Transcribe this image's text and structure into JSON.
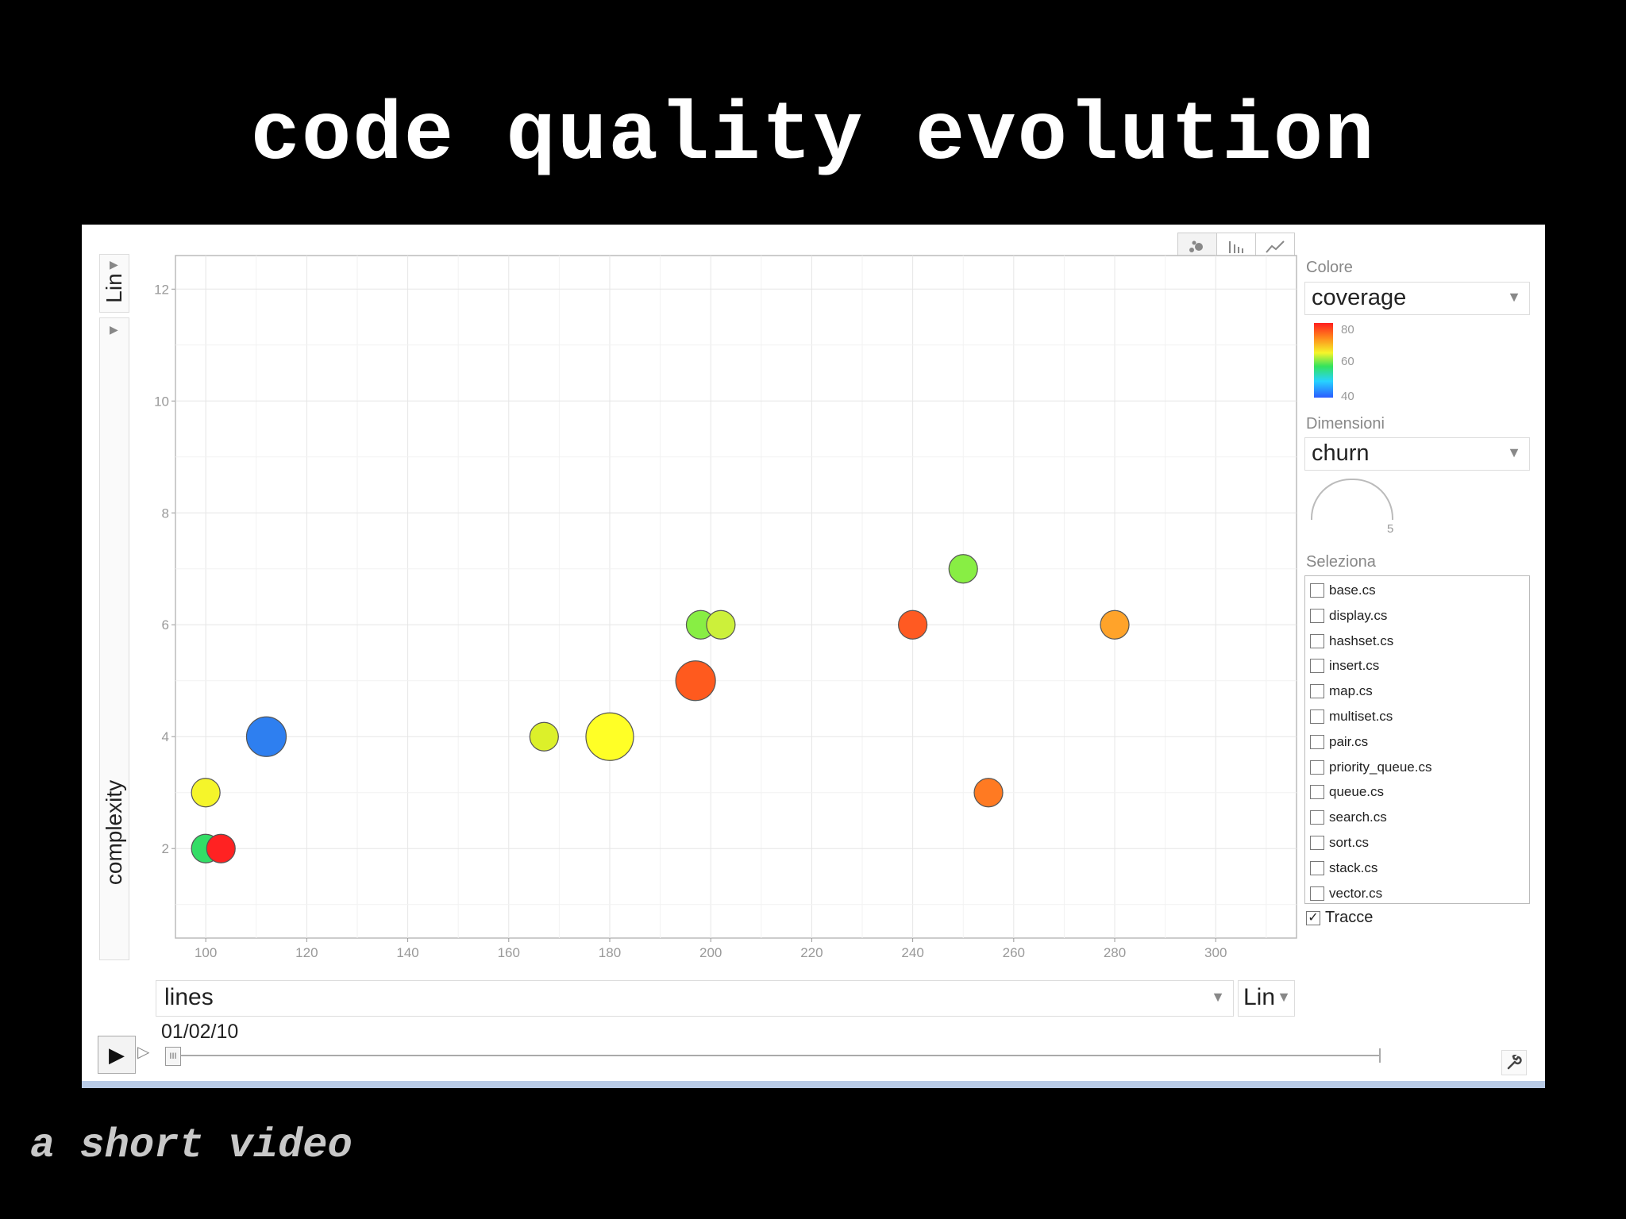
{
  "slide": {
    "title": "code quality evolution",
    "subtitle": "a short video"
  },
  "toolbar": {
    "chart_tabs": [
      "bubble",
      "bar",
      "line"
    ],
    "active_tab": "bubble"
  },
  "y_axis_control": {
    "scale": "Lin",
    "metric": "complexity"
  },
  "x_axis_control": {
    "metric": "lines",
    "scale": "Lin"
  },
  "timeline": {
    "date": "01/02/10"
  },
  "side_panel": {
    "color_label": "Colore",
    "color_metric": "coverage",
    "color_ticks": [
      "80",
      "60",
      "40"
    ],
    "size_label": "Dimensioni",
    "size_metric": "churn",
    "size_tick": "5",
    "select_label": "Seleziona",
    "files": [
      "base.cs",
      "display.cs",
      "hashset.cs",
      "insert.cs",
      "map.cs",
      "multiset.cs",
      "pair.cs",
      "priority_queue.cs",
      "queue.cs",
      "search.cs",
      "sort.cs",
      "stack.cs",
      "vector.cs"
    ],
    "trails_label": "Tracce",
    "trails_checked": true
  },
  "chart_data": {
    "type": "scatter",
    "title": "",
    "xlabel": "lines",
    "ylabel": "complexity",
    "xlim": [
      94,
      316
    ],
    "ylim": [
      0.4,
      12.6
    ],
    "x_ticks": [
      100,
      120,
      140,
      160,
      180,
      200,
      220,
      240,
      260,
      280,
      300
    ],
    "y_ticks": [
      2,
      4,
      6,
      8,
      10,
      12
    ],
    "grid": true,
    "color_metric": "coverage",
    "size_metric": "churn",
    "points": [
      {
        "x": 100,
        "y": 2,
        "r": 18,
        "color": "#33dd66"
      },
      {
        "x": 103,
        "y": 2,
        "r": 18,
        "color": "#ff2222"
      },
      {
        "x": 100,
        "y": 3,
        "r": 18,
        "color": "#f5f52a"
      },
      {
        "x": 112,
        "y": 4,
        "r": 25,
        "color": "#2e7ff0"
      },
      {
        "x": 167,
        "y": 4,
        "r": 18,
        "color": "#dcf02a"
      },
      {
        "x": 180,
        "y": 4,
        "r": 30,
        "color": "#ffff26"
      },
      {
        "x": 197,
        "y": 5,
        "r": 25,
        "color": "#ff5a1e"
      },
      {
        "x": 198,
        "y": 6,
        "r": 18,
        "color": "#88ee44"
      },
      {
        "x": 202,
        "y": 6,
        "r": 18,
        "color": "#ccf03a"
      },
      {
        "x": 240,
        "y": 6,
        "r": 18,
        "color": "#ff5a22"
      },
      {
        "x": 250,
        "y": 7,
        "r": 18,
        "color": "#88ee44"
      },
      {
        "x": 255,
        "y": 3,
        "r": 18,
        "color": "#ff7a22"
      },
      {
        "x": 280,
        "y": 6,
        "r": 18,
        "color": "#ffa32a"
      }
    ]
  }
}
